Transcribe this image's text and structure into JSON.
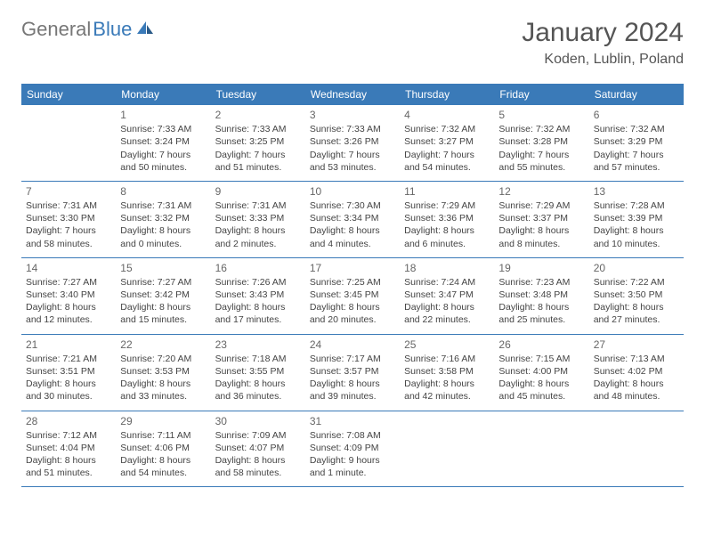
{
  "logo": {
    "textGray": "General",
    "textBlue": "Blue"
  },
  "title": "January 2024",
  "location": "Koden, Lublin, Poland",
  "colors": {
    "headerBg": "#3a7ab8",
    "headerText": "#ffffff",
    "bodyText": "#444444",
    "titleText": "#555555",
    "rowBorder": "#3a7ab8",
    "logoGray": "#777777",
    "logoBlue": "#3a7ab8",
    "pageBg": "#ffffff"
  },
  "dayNames": [
    "Sunday",
    "Monday",
    "Tuesday",
    "Wednesday",
    "Thursday",
    "Friday",
    "Saturday"
  ],
  "weeks": [
    [
      null,
      {
        "n": "1",
        "sr": "Sunrise: 7:33 AM",
        "ss": "Sunset: 3:24 PM",
        "dl": "Daylight: 7 hours and 50 minutes."
      },
      {
        "n": "2",
        "sr": "Sunrise: 7:33 AM",
        "ss": "Sunset: 3:25 PM",
        "dl": "Daylight: 7 hours and 51 minutes."
      },
      {
        "n": "3",
        "sr": "Sunrise: 7:33 AM",
        "ss": "Sunset: 3:26 PM",
        "dl": "Daylight: 7 hours and 53 minutes."
      },
      {
        "n": "4",
        "sr": "Sunrise: 7:32 AM",
        "ss": "Sunset: 3:27 PM",
        "dl": "Daylight: 7 hours and 54 minutes."
      },
      {
        "n": "5",
        "sr": "Sunrise: 7:32 AM",
        "ss": "Sunset: 3:28 PM",
        "dl": "Daylight: 7 hours and 55 minutes."
      },
      {
        "n": "6",
        "sr": "Sunrise: 7:32 AM",
        "ss": "Sunset: 3:29 PM",
        "dl": "Daylight: 7 hours and 57 minutes."
      }
    ],
    [
      {
        "n": "7",
        "sr": "Sunrise: 7:31 AM",
        "ss": "Sunset: 3:30 PM",
        "dl": "Daylight: 7 hours and 58 minutes."
      },
      {
        "n": "8",
        "sr": "Sunrise: 7:31 AM",
        "ss": "Sunset: 3:32 PM",
        "dl": "Daylight: 8 hours and 0 minutes."
      },
      {
        "n": "9",
        "sr": "Sunrise: 7:31 AM",
        "ss": "Sunset: 3:33 PM",
        "dl": "Daylight: 8 hours and 2 minutes."
      },
      {
        "n": "10",
        "sr": "Sunrise: 7:30 AM",
        "ss": "Sunset: 3:34 PM",
        "dl": "Daylight: 8 hours and 4 minutes."
      },
      {
        "n": "11",
        "sr": "Sunrise: 7:29 AM",
        "ss": "Sunset: 3:36 PM",
        "dl": "Daylight: 8 hours and 6 minutes."
      },
      {
        "n": "12",
        "sr": "Sunrise: 7:29 AM",
        "ss": "Sunset: 3:37 PM",
        "dl": "Daylight: 8 hours and 8 minutes."
      },
      {
        "n": "13",
        "sr": "Sunrise: 7:28 AM",
        "ss": "Sunset: 3:39 PM",
        "dl": "Daylight: 8 hours and 10 minutes."
      }
    ],
    [
      {
        "n": "14",
        "sr": "Sunrise: 7:27 AM",
        "ss": "Sunset: 3:40 PM",
        "dl": "Daylight: 8 hours and 12 minutes."
      },
      {
        "n": "15",
        "sr": "Sunrise: 7:27 AM",
        "ss": "Sunset: 3:42 PM",
        "dl": "Daylight: 8 hours and 15 minutes."
      },
      {
        "n": "16",
        "sr": "Sunrise: 7:26 AM",
        "ss": "Sunset: 3:43 PM",
        "dl": "Daylight: 8 hours and 17 minutes."
      },
      {
        "n": "17",
        "sr": "Sunrise: 7:25 AM",
        "ss": "Sunset: 3:45 PM",
        "dl": "Daylight: 8 hours and 20 minutes."
      },
      {
        "n": "18",
        "sr": "Sunrise: 7:24 AM",
        "ss": "Sunset: 3:47 PM",
        "dl": "Daylight: 8 hours and 22 minutes."
      },
      {
        "n": "19",
        "sr": "Sunrise: 7:23 AM",
        "ss": "Sunset: 3:48 PM",
        "dl": "Daylight: 8 hours and 25 minutes."
      },
      {
        "n": "20",
        "sr": "Sunrise: 7:22 AM",
        "ss": "Sunset: 3:50 PM",
        "dl": "Daylight: 8 hours and 27 minutes."
      }
    ],
    [
      {
        "n": "21",
        "sr": "Sunrise: 7:21 AM",
        "ss": "Sunset: 3:51 PM",
        "dl": "Daylight: 8 hours and 30 minutes."
      },
      {
        "n": "22",
        "sr": "Sunrise: 7:20 AM",
        "ss": "Sunset: 3:53 PM",
        "dl": "Daylight: 8 hours and 33 minutes."
      },
      {
        "n": "23",
        "sr": "Sunrise: 7:18 AM",
        "ss": "Sunset: 3:55 PM",
        "dl": "Daylight: 8 hours and 36 minutes."
      },
      {
        "n": "24",
        "sr": "Sunrise: 7:17 AM",
        "ss": "Sunset: 3:57 PM",
        "dl": "Daylight: 8 hours and 39 minutes."
      },
      {
        "n": "25",
        "sr": "Sunrise: 7:16 AM",
        "ss": "Sunset: 3:58 PM",
        "dl": "Daylight: 8 hours and 42 minutes."
      },
      {
        "n": "26",
        "sr": "Sunrise: 7:15 AM",
        "ss": "Sunset: 4:00 PM",
        "dl": "Daylight: 8 hours and 45 minutes."
      },
      {
        "n": "27",
        "sr": "Sunrise: 7:13 AM",
        "ss": "Sunset: 4:02 PM",
        "dl": "Daylight: 8 hours and 48 minutes."
      }
    ],
    [
      {
        "n": "28",
        "sr": "Sunrise: 7:12 AM",
        "ss": "Sunset: 4:04 PM",
        "dl": "Daylight: 8 hours and 51 minutes."
      },
      {
        "n": "29",
        "sr": "Sunrise: 7:11 AM",
        "ss": "Sunset: 4:06 PM",
        "dl": "Daylight: 8 hours and 54 minutes."
      },
      {
        "n": "30",
        "sr": "Sunrise: 7:09 AM",
        "ss": "Sunset: 4:07 PM",
        "dl": "Daylight: 8 hours and 58 minutes."
      },
      {
        "n": "31",
        "sr": "Sunrise: 7:08 AM",
        "ss": "Sunset: 4:09 PM",
        "dl": "Daylight: 9 hours and 1 minute."
      },
      null,
      null,
      null
    ]
  ]
}
